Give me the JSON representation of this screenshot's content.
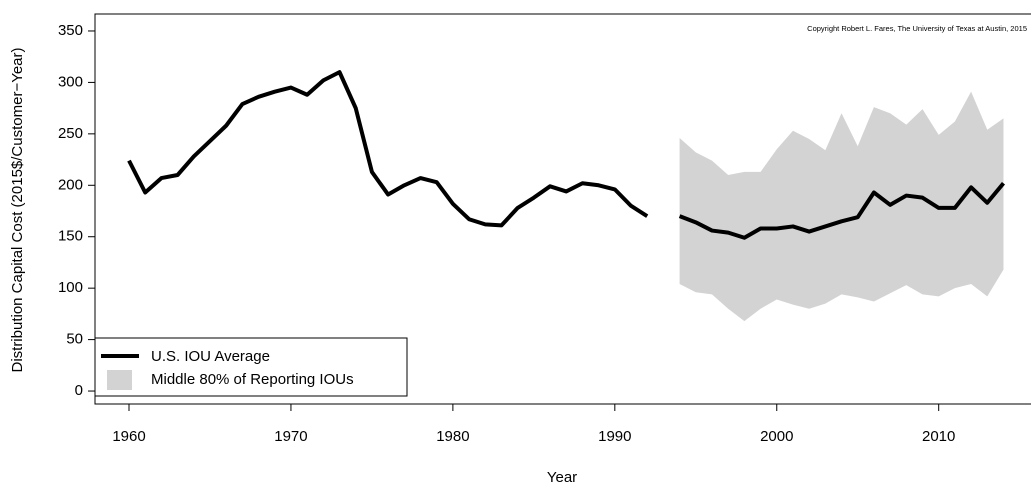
{
  "chart_data": {
    "type": "line",
    "xlabel": "Year",
    "ylabel": "Distribution Capital Cost (2015$/Customer−Year)",
    "annotation": "Copyright Robert L. Fares, The University of Texas at Austin, 2015",
    "xlim": [
      1957.9,
      2015.7
    ],
    "xticks": [
      1960,
      1970,
      1980,
      1990,
      2000,
      2010
    ],
    "ylim": [
      -12.6,
      366.5
    ],
    "yticks": [
      0,
      50,
      100,
      150,
      200,
      250,
      300,
      350
    ],
    "legend": "bottom-left",
    "x": [
      1960,
      1961,
      1962,
      1963,
      1964,
      1965,
      1966,
      1967,
      1968,
      1969,
      1970,
      1971,
      1972,
      1973,
      1974,
      1975,
      1976,
      1977,
      1978,
      1979,
      1980,
      1981,
      1982,
      1983,
      1984,
      1985,
      1986,
      1987,
      1988,
      1989,
      1990,
      1991,
      1992,
      1993,
      1994,
      1995,
      1996,
      1997,
      1998,
      1999,
      2000,
      2001,
      2002,
      2003,
      2004,
      2005,
      2006,
      2007,
      2008,
      2009,
      2010,
      2011,
      2012,
      2013,
      2014
    ],
    "series": [
      {
        "name": "U.S. IOU Average",
        "color": "#000000",
        "values": [
          224,
          193,
          207,
          210,
          228,
          243,
          258,
          279,
          286,
          291,
          295,
          288,
          302,
          310,
          275,
          213,
          191,
          200,
          207,
          203,
          182,
          167,
          162,
          161,
          178,
          188,
          199,
          194,
          202,
          200,
          196,
          180,
          170,
          null,
          170,
          164,
          156,
          154,
          149,
          158,
          158,
          160,
          155,
          160,
          165,
          169,
          193,
          181,
          190,
          188,
          178,
          178,
          198,
          183,
          202
        ]
      }
    ],
    "band": {
      "name": "Middle 80% of Reporting IOUs",
      "color": "#d3d3d3",
      "x": [
        1994,
        1995,
        1996,
        1997,
        1998,
        1999,
        2000,
        2001,
        2002,
        2003,
        2004,
        2005,
        2006,
        2007,
        2008,
        2009,
        2010,
        2011,
        2012,
        2013,
        2014
      ],
      "upper": [
        246,
        232,
        224,
        210,
        213,
        213,
        235,
        253,
        245,
        234,
        270,
        238,
        276,
        270,
        259,
        274,
        249,
        262,
        291,
        254,
        265
      ],
      "lower": [
        104,
        96,
        94,
        80,
        68,
        80,
        89,
        84,
        80,
        85,
        94,
        91,
        87,
        95,
        103,
        94,
        92,
        100,
        104,
        92,
        118
      ]
    }
  }
}
